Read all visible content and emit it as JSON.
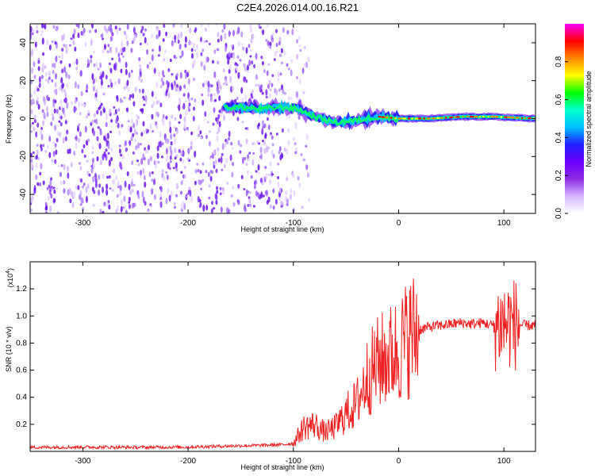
{
  "title": "C2E4.2026.014.00.16.R21",
  "colors": {
    "snr_line": "#ee2222",
    "colormap": [
      "#ffffff",
      "#d7b6ff",
      "#8a2be2",
      "#6a00ff",
      "#2020ff",
      "#00bfff",
      "#00ffcc",
      "#00ff00",
      "#ffff00",
      "#ff8800",
      "#ff0000",
      "#ff00ff"
    ]
  },
  "chart_data": [
    {
      "type": "heatmap",
      "title": "",
      "xlabel": "Height of straight line (km)",
      "ylabel": "Frequency (Hz)",
      "xlim": [
        -350,
        130
      ],
      "ylim": [
        -50,
        50
      ],
      "x_ticks": [
        -300,
        -200,
        -100,
        0,
        100
      ],
      "x_tick_labels": [
        "-300",
        "-200",
        "-100",
        "0",
        "100"
      ],
      "y_ticks": [
        -40,
        -20,
        0,
        20,
        40
      ],
      "y_tick_labels": [
        "-40",
        "-20",
        "0",
        "20",
        "40"
      ],
      "colorbar": {
        "label": "Normalized spectral amplitude",
        "range": [
          0,
          1
        ],
        "ticks": [
          0.0,
          0.2,
          0.4,
          0.6,
          0.8
        ],
        "tick_labels": [
          "0.0",
          "0.2",
          "0.4",
          "0.6",
          "0.8"
        ],
        "colormap": "rainbow"
      },
      "noise_region_x": [
        -350,
        -110
      ],
      "signal_track": [
        {
          "x": -165,
          "freq": 6
        },
        {
          "x": -150,
          "freq": 6
        },
        {
          "x": -130,
          "freq": 5
        },
        {
          "x": -110,
          "freq": 6
        },
        {
          "x": -95,
          "freq": 5
        },
        {
          "x": -80,
          "freq": 1
        },
        {
          "x": -60,
          "freq": -2
        },
        {
          "x": -40,
          "freq": -1
        },
        {
          "x": -20,
          "freq": 1
        },
        {
          "x": 0,
          "freq": 0
        },
        {
          "x": 30,
          "freq": 0
        },
        {
          "x": 60,
          "freq": 1
        },
        {
          "x": 90,
          "freq": 1
        },
        {
          "x": 130,
          "freq": 0
        }
      ]
    },
    {
      "type": "line",
      "title": "",
      "xlabel": "Height of straight line (km)",
      "ylabel": "SNR (10 * v/v)",
      "y_scale_label": "(x10",
      "y_scale_exp": "4",
      "y_scale_close": ")",
      "xlim": [
        -350,
        130
      ],
      "ylim": [
        0,
        14000
      ],
      "x_ticks": [
        -300,
        -200,
        -100,
        0,
        100
      ],
      "x_tick_labels": [
        "-300",
        "-200",
        "-100",
        "0",
        "100"
      ],
      "y_ticks": [
        2000,
        4000,
        6000,
        8000,
        10000,
        12000
      ],
      "y_tick_labels": [
        "0.2",
        "0.4",
        "0.6",
        "0.8",
        "1.0",
        "1.2"
      ],
      "series": [
        {
          "x": [
            -350,
            -300,
            -250,
            -200,
            -160,
            -130,
            -110,
            -100,
            -90,
            -80,
            -70,
            -60,
            -50,
            -40,
            -30,
            -20,
            -10,
            0,
            10,
            20,
            30,
            40,
            50,
            60,
            70,
            80,
            90,
            100,
            110,
            120,
            130
          ],
          "y": [
            300,
            320,
            300,
            320,
            400,
            450,
            500,
            600,
            1800,
            2000,
            1400,
            1800,
            2800,
            3500,
            5500,
            6500,
            7000,
            7500,
            8500,
            9000,
            9200,
            9300,
            9400,
            9500,
            9400,
            9500,
            9300,
            9500,
            9400,
            9300,
            9300
          ]
        }
      ]
    }
  ]
}
